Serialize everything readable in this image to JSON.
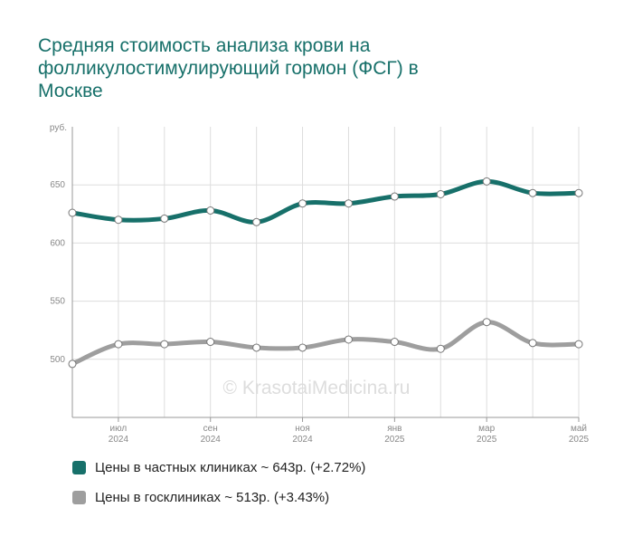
{
  "chart_data": {
    "type": "line",
    "title": "Средняя стоимость анализа крови на фолликулостимулирующий гормон (ФСГ) в Москве",
    "y_unit": "руб.",
    "watermark": "© KrasotaiMedicina.ru",
    "categories": [
      null,
      "июл\n2024",
      null,
      "сен\n2024",
      null,
      "ноя\n2024",
      null,
      "янв\n2025",
      null,
      "мар\n2025",
      null,
      "май\n2025"
    ],
    "series": [
      {
        "name": "Цены в частных клиниках ~ 643р. (+2.72%)",
        "color": "#17706a",
        "values": [
          626,
          620,
          621,
          628,
          618,
          634,
          634,
          640,
          642,
          653,
          643,
          643
        ]
      },
      {
        "name": "Цены в госклиниках ~ 513р. (+3.43%)",
        "color": "#9e9e9e",
        "values": [
          496,
          513,
          513,
          515,
          510,
          510,
          517,
          515,
          509,
          532,
          514,
          513
        ]
      }
    ],
    "ylim": [
      450,
      700
    ],
    "yticks": [
      500,
      550,
      600,
      650
    ],
    "grid": true,
    "legend": "bottom"
  }
}
